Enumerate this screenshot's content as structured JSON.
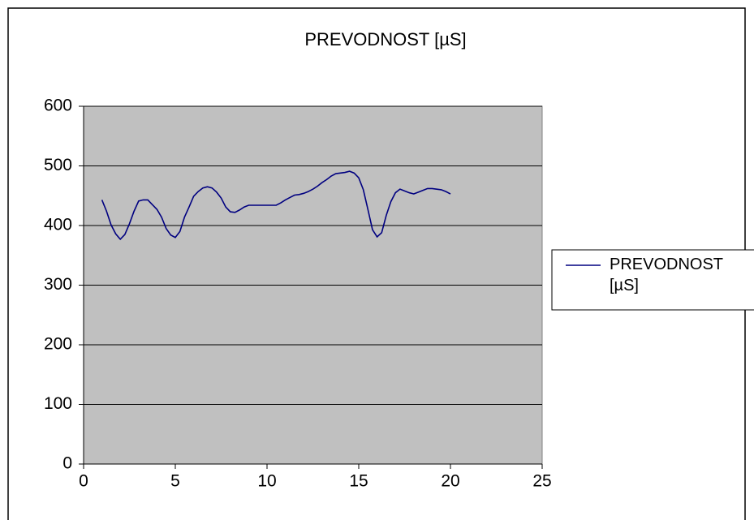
{
  "chart_data": {
    "type": "line",
    "title": "PREVODNOST [µS]",
    "x": [
      1,
      1.25,
      1.5,
      1.75,
      2,
      2.25,
      2.5,
      2.75,
      3,
      3.25,
      3.5,
      3.75,
      4,
      4.25,
      4.5,
      4.75,
      5,
      5.25,
      5.5,
      5.75,
      6,
      6.25,
      6.5,
      6.75,
      7,
      7.25,
      7.5,
      7.75,
      8,
      8.25,
      8.5,
      8.75,
      9,
      9.25,
      9.5,
      9.75,
      10,
      10.25,
      10.5,
      10.75,
      11,
      11.25,
      11.5,
      11.75,
      12,
      12.25,
      12.5,
      12.75,
      13,
      13.25,
      13.5,
      13.75,
      14,
      14.25,
      14.5,
      14.75,
      15,
      15.25,
      15.5,
      15.75,
      16,
      16.25,
      16.5,
      16.75,
      17,
      17.25,
      17.5,
      17.75,
      18,
      18.25,
      18.5,
      18.75,
      19,
      19.25,
      19.5,
      19.75,
      20
    ],
    "series": [
      {
        "name": "PREVODNOST [µS]",
        "color": "#000080",
        "values": [
          443,
          424,
          401,
          386,
          377,
          385,
          403,
          424,
          441,
          443,
          443,
          435,
          427,
          414,
          395,
          384,
          380,
          390,
          414,
          431,
          449,
          457,
          463,
          465,
          463,
          456,
          446,
          431,
          423,
          422,
          426,
          431,
          434,
          434,
          434,
          434,
          434,
          434,
          434,
          438,
          443,
          447,
          451,
          452,
          454,
          457,
          461,
          466,
          472,
          477,
          483,
          487,
          488,
          489,
          491,
          488,
          480,
          460,
          427,
          393,
          381,
          388,
          417,
          440,
          455,
          461,
          458,
          455,
          453,
          456,
          459,
          462,
          462,
          461,
          460,
          457,
          453
        ]
      }
    ],
    "xlim": [
      0,
      25
    ],
    "xticks": [
      0,
      5,
      10,
      15,
      20,
      25
    ],
    "ylim": [
      0,
      600
    ],
    "yticks": [
      0,
      100,
      200,
      300,
      400,
      500,
      600
    ],
    "grid": true,
    "legend": "right"
  }
}
